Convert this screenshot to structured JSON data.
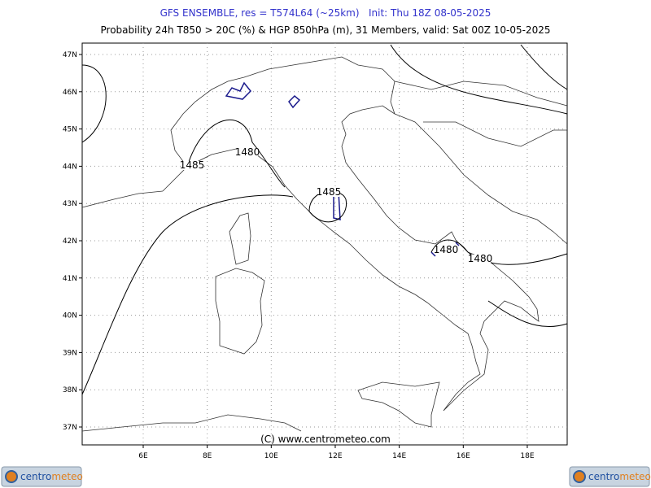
{
  "header": {
    "title": "GFS ENSEMBLE, res = T574L64 (~25km)   Init: Thu 18Z 08-05-2025",
    "subtitle": "Probability 24h T850 > 20C (%) & HGP 850hPa (m), 31 Members, valid: Sat 00Z 10-05-2025"
  },
  "map": {
    "lon_ticks": [
      {
        "value": 6,
        "label": "6E"
      },
      {
        "value": 8,
        "label": "8E"
      },
      {
        "value": 10,
        "label": "10E"
      },
      {
        "value": 12,
        "label": "12E"
      },
      {
        "value": 14,
        "label": "14E"
      },
      {
        "value": 16,
        "label": "16E"
      },
      {
        "value": 18,
        "label": "18E"
      }
    ],
    "lat_ticks": [
      {
        "value": 37,
        "label": "37N"
      },
      {
        "value": 38,
        "label": "38N"
      },
      {
        "value": 39,
        "label": "39N"
      },
      {
        "value": 40,
        "label": "40N"
      },
      {
        "value": 41,
        "label": "41N"
      },
      {
        "value": 42,
        "label": "42N"
      },
      {
        "value": 43,
        "label": "43N"
      },
      {
        "value": 44,
        "label": "44N"
      },
      {
        "value": 45,
        "label": "45N"
      },
      {
        "value": 46,
        "label": "46N"
      },
      {
        "value": 47,
        "label": "47N"
      }
    ],
    "contour_labels": [
      "1480",
      "1485",
      "1485",
      "1480",
      "1480"
    ],
    "copyright": "(C) www.centrometeo.com"
  },
  "logos": [
    {
      "brand": "centro",
      "accent": "meteo"
    },
    {
      "brand": "centro",
      "accent": "meteo"
    }
  ]
}
